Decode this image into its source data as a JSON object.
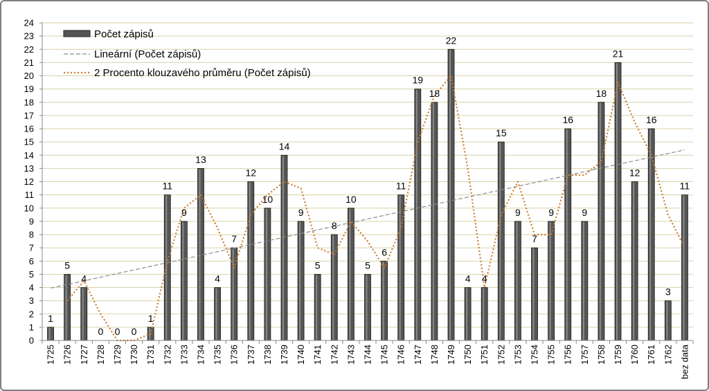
{
  "chart_data": {
    "type": "bar",
    "categories": [
      "1725",
      "1726",
      "1727",
      "1728",
      "1729",
      "1730",
      "1731",
      "1732",
      "1733",
      "1734",
      "1735",
      "1736",
      "1737",
      "1738",
      "1739",
      "1740",
      "1741",
      "1742",
      "1743",
      "1744",
      "1745",
      "1746",
      "1747",
      "1748",
      "1749",
      "1750",
      "1751",
      "1752",
      "1753",
      "1754",
      "1755",
      "1756",
      "1757",
      "1758",
      "1759",
      "1760",
      "1761",
      "1762",
      "bez data"
    ],
    "series": [
      {
        "name": "Počet zápisů",
        "kind": "bar",
        "color": "#555555",
        "values": [
          1,
          5,
          4,
          0,
          0,
          0,
          1,
          11,
          9,
          13,
          4,
          7,
          12,
          10,
          14,
          9,
          5,
          8,
          10,
          5,
          6,
          11,
          19,
          18,
          22,
          4,
          4,
          15,
          9,
          7,
          9,
          16,
          9,
          18,
          21,
          12,
          16,
          3,
          11
        ]
      },
      {
        "name": "Lineární (Počet zápisů)",
        "kind": "trendline-linear",
        "color": "#8c8c8c"
      },
      {
        "name": "2 Procento klouzavého průměru (Počet zápisů)",
        "kind": "moving-average-2",
        "color": "#cc7a2a"
      }
    ],
    "ylim": [
      0,
      24
    ],
    "ytick_step": 1,
    "title": "",
    "xlabel": "",
    "ylabel": "",
    "grid": true,
    "legend_position": "top-left"
  }
}
